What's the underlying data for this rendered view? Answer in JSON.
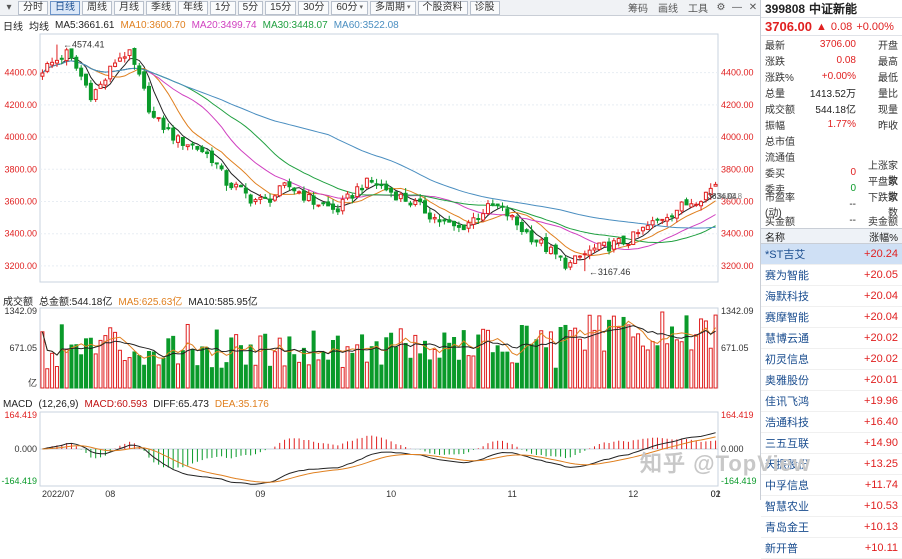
{
  "toolbar": {
    "items": [
      {
        "label": "分时",
        "active": false
      },
      {
        "label": "日线",
        "active": true
      },
      {
        "label": "周线",
        "active": false
      },
      {
        "label": "月线",
        "active": false
      },
      {
        "label": "季线",
        "active": false
      },
      {
        "label": "年线",
        "active": false
      },
      {
        "label": "1分",
        "active": false
      },
      {
        "label": "5分",
        "active": false
      },
      {
        "label": "15分",
        "active": false
      },
      {
        "label": "30分",
        "active": false
      },
      {
        "label": "60分",
        "active": false,
        "dropdown": true
      },
      {
        "label": "多周期",
        "active": false,
        "dropdown": true
      },
      {
        "label": "个股资料",
        "active": false
      },
      {
        "label": "诊股",
        "active": false
      }
    ],
    "right_items": [
      "筹码",
      "画线",
      "工具"
    ]
  },
  "main_info": {
    "period": "日线",
    "ma_type": "均线",
    "ma5": "MA5:3661.61",
    "ma10": "MA10:3600.70",
    "ma20": "MA20:3499.74",
    "ma30": "MA30:3448.07",
    "ma60": "MA60:3522.08"
  },
  "vol_info": {
    "label": "成交额",
    "total": "总金额:544.18亿",
    "ma5": "MA5:625.63亿",
    "ma10": "MA10:585.95亿"
  },
  "macd_info": {
    "label": "MACD",
    "params": "(12,26,9)",
    "macd": "MACD:60.593",
    "diff": "DIFF:65.473",
    "dea": "DEA:35.176"
  },
  "quote": {
    "code": "399808",
    "name": "中证新能",
    "price": "3706.00",
    "change": "0.08",
    "pct": "+0.00%",
    "rows": [
      {
        "k": "最新",
        "v": "3706.00",
        "k2": "开盘"
      },
      {
        "k": "涨跌",
        "v": "0.08",
        "k2": "最高"
      },
      {
        "k": "涨跌%",
        "v": "+0.00%",
        "k2": "最低"
      },
      {
        "k": "总量",
        "v": "1413.52万",
        "k2": "量比"
      },
      {
        "k": "成交额",
        "v": "544.18亿",
        "k2": "现量"
      },
      {
        "k": "振幅",
        "v": "1.77%",
        "k2": "昨收"
      },
      {
        "k": "总市值",
        "v": "",
        "k2": ""
      },
      {
        "k": "流通值",
        "v": "",
        "k2": ""
      },
      {
        "k": "委买",
        "v": "0",
        "k2": "上涨家数"
      },
      {
        "k": "委卖",
        "v": "0",
        "k2": "平盘家数"
      },
      {
        "k": "市盈率(动)",
        "v": "--",
        "k2": "下跌家数"
      },
      {
        "k": "买金额",
        "v": "--",
        "k2": "卖金额"
      }
    ]
  },
  "plate": {
    "col1": "名称",
    "col2": "涨幅%",
    "rows": [
      {
        "n": "*ST吉艾",
        "p": "+20.24"
      },
      {
        "n": "赛为智能",
        "p": "+20.05"
      },
      {
        "n": "海默科技",
        "p": "+20.04"
      },
      {
        "n": "赛摩智能",
        "p": "+20.04"
      },
      {
        "n": "慧博云通",
        "p": "+20.02"
      },
      {
        "n": "初灵信息",
        "p": "+20.02"
      },
      {
        "n": "奥雅股份",
        "p": "+20.01"
      },
      {
        "n": "佳讯飞鸿",
        "p": "+19.96"
      },
      {
        "n": "浩通科技",
        "p": "+16.40"
      },
      {
        "n": "三五互联",
        "p": "+14.90"
      },
      {
        "n": "天振股份",
        "p": "+13.25"
      },
      {
        "n": "中孚信息",
        "p": "+11.74"
      },
      {
        "n": "智慧农业",
        "p": "+10.53"
      },
      {
        "n": "青岛金王",
        "p": "+10.13"
      },
      {
        "n": "新开普",
        "p": "+10.11"
      }
    ]
  },
  "price_axis": {
    "ticks": [
      "4400.00",
      "4200.00",
      "4000.00",
      "3800.00",
      "3600.00",
      "3400.00",
      "3200.00"
    ],
    "min": 3100,
    "max": 4640
  },
  "vol_axis": {
    "ticks": [
      "1342.09",
      "671.05",
      "亿"
    ]
  },
  "macd_axis": {
    "ticks": [
      "164.419",
      "0.000",
      "-164.419"
    ]
  },
  "x_axis": {
    "ticks": [
      "2022/07",
      "08",
      "09",
      "10",
      "11",
      "12",
      "01",
      "02"
    ]
  },
  "annotations": {
    "high": "4574.41",
    "low": "3167.46",
    "last_line": "3634.04",
    "last_line2": "3682.8"
  },
  "chart_data": {
    "type": "candlestick",
    "colors": {
      "up": "#e02020",
      "down": "#0a9a2a",
      "ma5": "#222222",
      "ma10": "#e08020",
      "ma20": "#d040c0",
      "ma30": "#20a040",
      "ma60": "#4a8ec0"
    },
    "close_anchors": [
      4420,
      4470,
      4520,
      4400,
      4260,
      4340,
      4480,
      4530,
      4350,
      4120,
      4060,
      3980,
      3960,
      3920,
      3860,
      3720,
      3680,
      3620,
      3600,
      3640,
      3700,
      3660,
      3600,
      3580,
      3540,
      3620,
      3700,
      3720,
      3680,
      3640,
      3600,
      3560,
      3500,
      3460,
      3430,
      3480,
      3540,
      3580,
      3520,
      3440,
      3380,
      3320,
      3260,
      3200,
      3260,
      3300,
      3320,
      3340,
      3360,
      3420,
      3470,
      3520,
      3560,
      3600,
      3640,
      3706
    ]
  }
}
